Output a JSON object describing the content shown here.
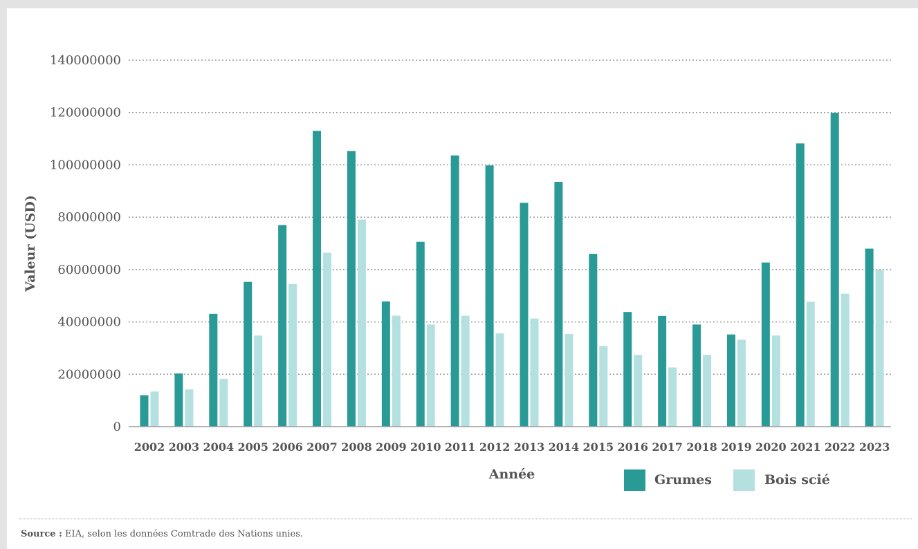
{
  "chart_data": {
    "type": "bar",
    "title": "",
    "xlabel": "Année",
    "ylabel": "Valeur (USD)",
    "ylim": [
      0,
      140000000
    ],
    "yticks": [
      0,
      20000000,
      40000000,
      60000000,
      80000000,
      100000000,
      120000000,
      140000000
    ],
    "grid": true,
    "legend_position": "bottom-right",
    "categories": [
      "2002",
      "2003",
      "2004",
      "2005",
      "2006",
      "2007",
      "2008",
      "2009",
      "2010",
      "2011",
      "2012",
      "2013",
      "2014",
      "2015",
      "2016",
      "2017",
      "2018",
      "2019",
      "2020",
      "2021",
      "2022",
      "2023"
    ],
    "series": [
      {
        "name": "Grumes",
        "color": "#2a9a96",
        "values": [
          12000000,
          20300000,
          43100000,
          55300000,
          77000000,
          113000000,
          105300000,
          47800000,
          70600000,
          103600000,
          99800000,
          85500000,
          93500000,
          66000000,
          43800000,
          42300000,
          39000000,
          35200000,
          62700000,
          108200000,
          119900000,
          68000000
        ]
      },
      {
        "name": "Bois scié",
        "color": "#b5e0e0",
        "values": [
          13400000,
          14200000,
          18200000,
          34800000,
          54500000,
          66400000,
          79100000,
          42400000,
          39000000,
          42400000,
          35600000,
          41300000,
          35400000,
          30800000,
          27400000,
          22600000,
          27400000,
          33200000,
          34800000,
          47700000,
          50800000,
          59900000
        ]
      }
    ]
  },
  "source": {
    "label": "Source :",
    "text": " EIA, selon les données Comtrade des Nations unies."
  }
}
